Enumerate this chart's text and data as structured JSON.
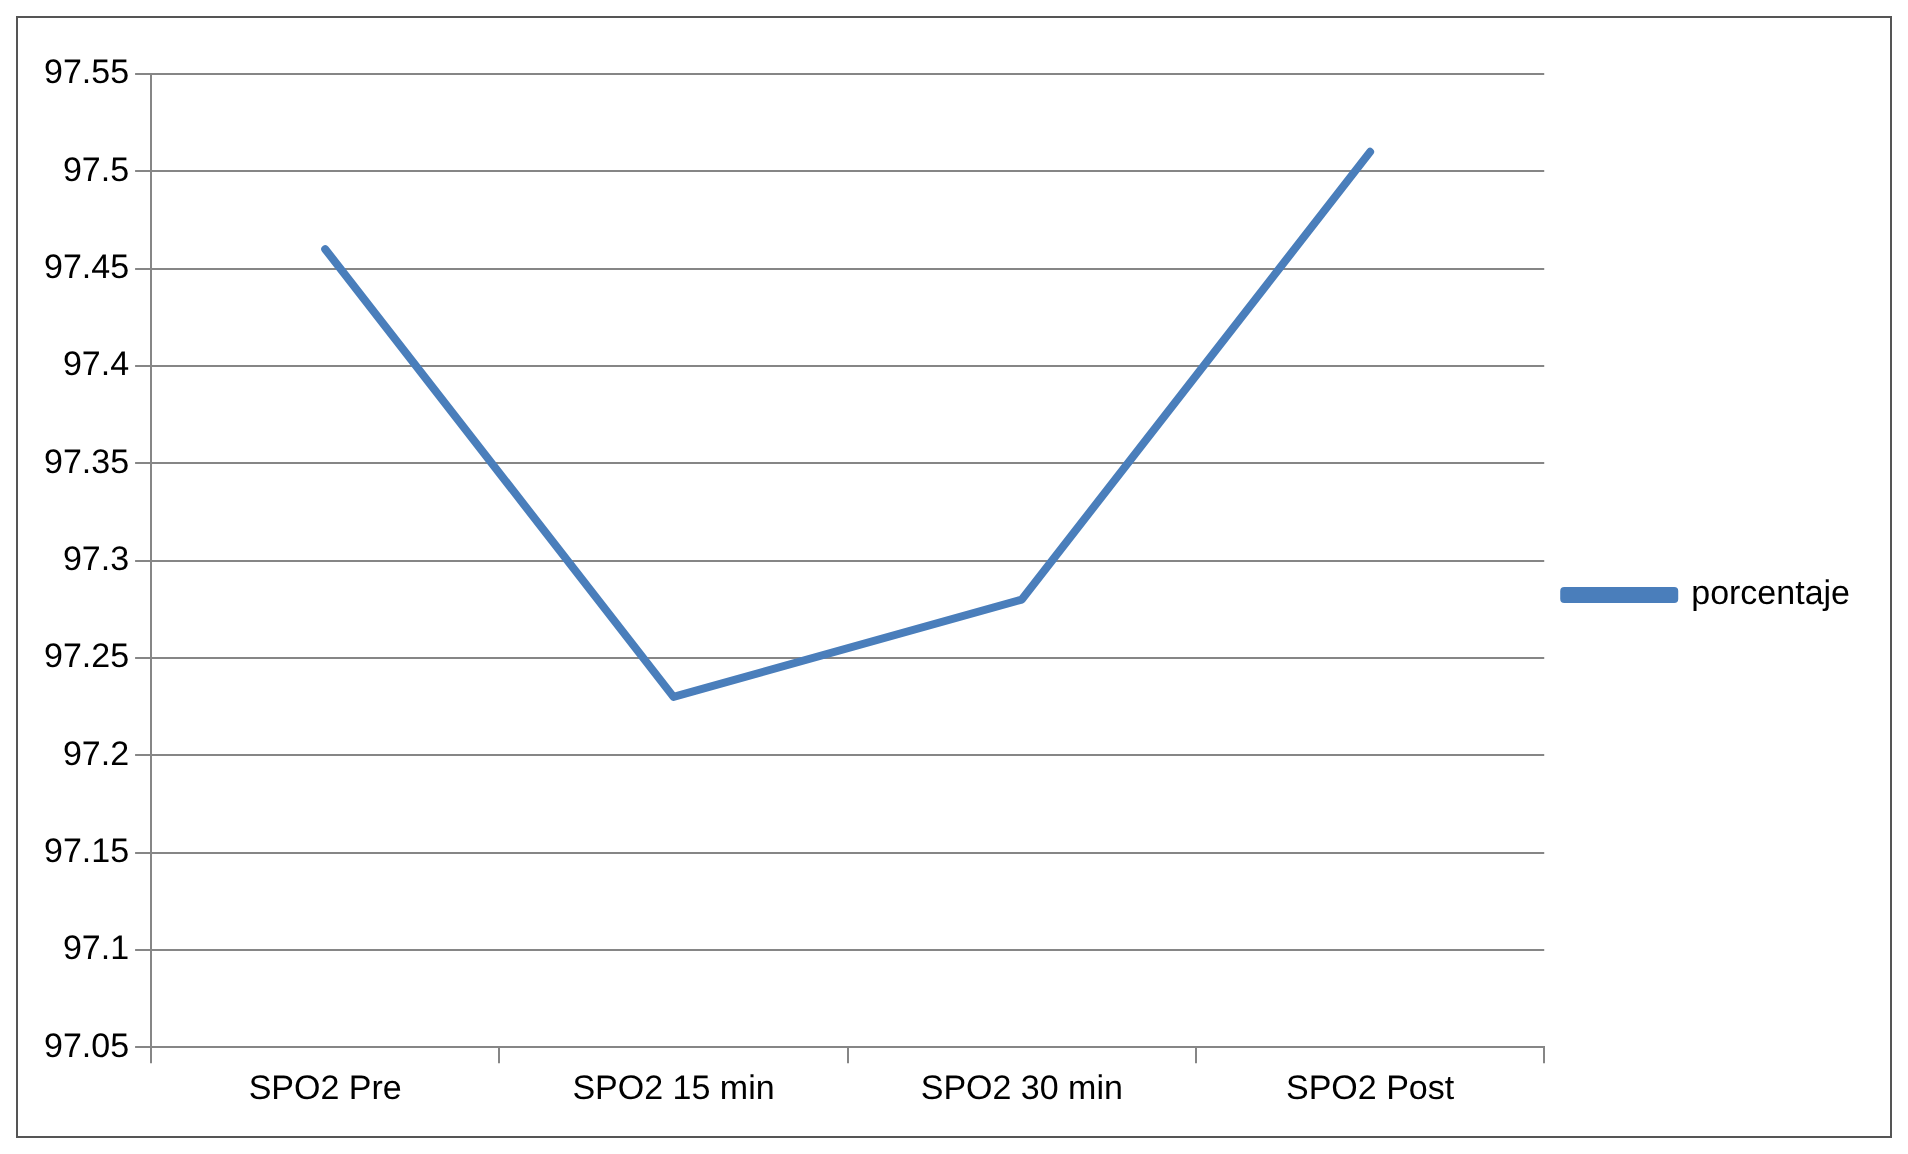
{
  "chart_data": {
    "type": "line",
    "categories": [
      "SPO2 Pre",
      "SPO2 15 min",
      "SPO2 30 min",
      "SPO2 Post"
    ],
    "series": [
      {
        "name": "porcentaje",
        "color": "#4a7ebb",
        "values": [
          97.46,
          97.23,
          97.28,
          97.51
        ]
      }
    ],
    "ylim": [
      97.05,
      97.55
    ],
    "yticks": [
      97.05,
      97.1,
      97.15,
      97.2,
      97.25,
      97.3,
      97.35,
      97.4,
      97.45,
      97.5,
      97.55
    ],
    "grid": "y",
    "legend": "right",
    "marker": "none",
    "line_style": "solid"
  }
}
